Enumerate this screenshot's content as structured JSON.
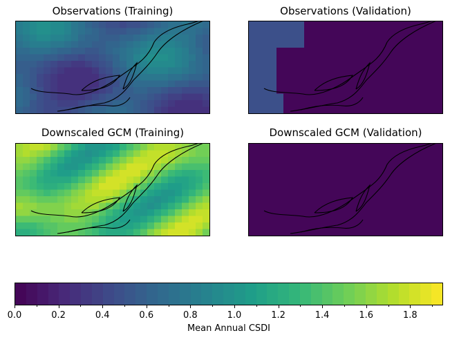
{
  "chart_data": {
    "type": "heatmap",
    "panels": [
      {
        "title": "Observations (Training)",
        "field": "obs_train",
        "range": [
          0.25,
          1.0
        ]
      },
      {
        "title": "Observations (Validation)",
        "field": "obs_val",
        "range": [
          0.0,
          0.45
        ]
      },
      {
        "title": "Downscaled GCM (Training)",
        "field": "gcm_train",
        "range": [
          0.9,
          1.85
        ]
      },
      {
        "title": "Downscaled GCM (Validation)",
        "field": "gcm_val",
        "range": [
          0.03,
          0.03
        ]
      }
    ],
    "colorbar": {
      "label": "Mean Annual CSDI",
      "min": 0.0,
      "max": 1.95,
      "levels": 39,
      "colormap": "viridis",
      "ticks": [
        "0.0",
        "0.2",
        "0.4",
        "0.6",
        "0.8",
        "1.0",
        "1.2",
        "1.4",
        "1.6",
        "1.8"
      ],
      "tick_values": [
        0.0,
        0.2,
        0.4,
        0.6,
        0.8,
        1.0,
        1.2,
        1.4,
        1.6,
        1.8
      ]
    },
    "grid": false
  }
}
